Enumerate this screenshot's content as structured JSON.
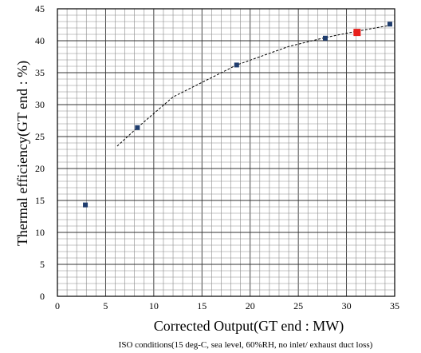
{
  "chart_data": {
    "type": "scatter",
    "title": "",
    "xlabel": "Corrected Output(GT end : MW)",
    "ylabel": "Thermal efficiency(GT end : %)",
    "note": "ISO conditions(15 deg-C, sea level, 60%RH, no inlet/ exhaust duct loss)",
    "xlim": [
      0,
      35
    ],
    "ylim": [
      0,
      45
    ],
    "x_ticks": [
      0,
      5,
      10,
      15,
      20,
      25,
      30,
      35
    ],
    "y_ticks": [
      0,
      5,
      10,
      15,
      20,
      25,
      30,
      35,
      40,
      45
    ],
    "x_tick_labels": [
      "0",
      "5",
      "10",
      "15",
      "20",
      "25",
      "30",
      "35"
    ],
    "y_tick_labels": [
      "0",
      "5",
      "10",
      "15",
      "20",
      "25",
      "30",
      "35",
      "40",
      "45"
    ],
    "grid": true,
    "series": [
      {
        "color": "#1f3d6e",
        "marker": "square",
        "points": [
          {
            "x": 2.9,
            "y": 14.3
          },
          {
            "x": 8.3,
            "y": 26.4
          },
          {
            "x": 18.6,
            "y": 36.2
          },
          {
            "x": 27.8,
            "y": 40.4
          },
          {
            "x": 34.5,
            "y": 42.6
          }
        ]
      },
      {
        "color": "#e8201c",
        "marker": "square",
        "points": [
          {
            "x": 31.1,
            "y": 41.3
          }
        ]
      }
    ],
    "trendline": {
      "style": "dashed",
      "color": "#000000",
      "points": [
        {
          "x": 6.2,
          "y": 23.5
        },
        {
          "x": 8.3,
          "y": 26.4
        },
        {
          "x": 12.0,
          "y": 31.2
        },
        {
          "x": 18.6,
          "y": 36.2
        },
        {
          "x": 24.0,
          "y": 39.1
        },
        {
          "x": 27.8,
          "y": 40.5
        },
        {
          "x": 31.1,
          "y": 41.5
        },
        {
          "x": 34.5,
          "y": 42.4
        }
      ]
    }
  }
}
